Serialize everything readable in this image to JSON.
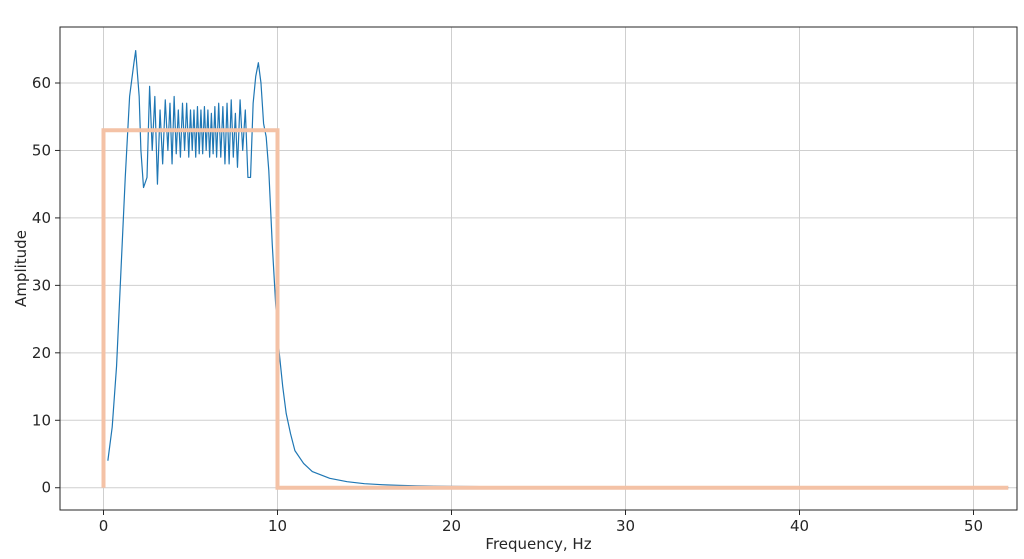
{
  "chart_data": {
    "type": "line",
    "title": "",
    "xlabel": "Frequency, Hz",
    "ylabel": "Amplitude",
    "xlim": [
      -2.5,
      52.5
    ],
    "ylim": [
      -3.3,
      68.3
    ],
    "xticks": [
      0,
      10,
      20,
      30,
      40,
      50
    ],
    "yticks": [
      0,
      10,
      20,
      30,
      40,
      50,
      60
    ],
    "xtick_labels": [
      "0",
      "10",
      "20",
      "30",
      "40",
      "50"
    ],
    "ytick_labels": [
      "0",
      "10",
      "20",
      "30",
      "40",
      "50",
      "60"
    ],
    "grid": true,
    "legend": "none",
    "series": [
      {
        "color": "#1f77b4",
        "style": "thin-line",
        "x": [
          0.25,
          0.5,
          0.75,
          1.0,
          1.25,
          1.5,
          1.75,
          1.85,
          2.05,
          2.15,
          2.3,
          2.5,
          2.65,
          2.8,
          2.95,
          3.1,
          3.25,
          3.4,
          3.55,
          3.7,
          3.82,
          3.94,
          4.06,
          4.18,
          4.3,
          4.42,
          4.54,
          4.66,
          4.78,
          4.9,
          5.0,
          5.1,
          5.2,
          5.3,
          5.4,
          5.5,
          5.6,
          5.7,
          5.8,
          5.9,
          6.0,
          6.1,
          6.2,
          6.3,
          6.4,
          6.5,
          6.62,
          6.74,
          6.86,
          6.98,
          7.1,
          7.22,
          7.34,
          7.46,
          7.58,
          7.7,
          7.85,
          8.0,
          8.15,
          8.3,
          8.45,
          8.6,
          8.75,
          8.9,
          9.05,
          9.2,
          9.35,
          9.5,
          9.7,
          9.9,
          10.1,
          10.3,
          10.5,
          10.75,
          11.0,
          11.5,
          12.0,
          13.0,
          14.0,
          15.0,
          16.0,
          17.0,
          18.0,
          20.0,
          25.0,
          30.0,
          35.0,
          40.0,
          45.0,
          50.0,
          52.0
        ],
        "y": [
          4,
          9,
          18,
          32,
          46,
          58,
          63,
          64.8,
          58,
          50,
          44.5,
          46,
          59.5,
          50,
          58,
          45,
          56,
          48,
          57.5,
          50,
          57,
          48,
          58,
          49.5,
          56,
          49,
          57,
          50,
          57,
          49,
          56,
          50,
          56,
          49,
          56.5,
          49.5,
          56,
          49.5,
          56.5,
          50,
          56,
          49,
          55.5,
          49.5,
          56.5,
          49,
          57,
          49,
          56.5,
          48,
          57,
          48,
          57.5,
          49,
          55.5,
          47.5,
          57.5,
          50,
          56,
          46,
          46,
          57,
          61,
          63,
          60,
          54,
          52,
          47,
          36,
          27,
          20,
          15,
          11,
          8,
          5.5,
          3.6,
          2.4,
          1.4,
          0.9,
          0.6,
          0.45,
          0.35,
          0.28,
          0.2,
          0.1,
          0.06,
          0.04,
          0.03,
          0.02,
          0.02,
          0.02
        ]
      },
      {
        "color": "#f4c2a6",
        "style": "thick-line",
        "x": [
          0,
          0,
          10,
          10,
          52
        ],
        "y": [
          0,
          53,
          53,
          0,
          0
        ]
      }
    ]
  }
}
